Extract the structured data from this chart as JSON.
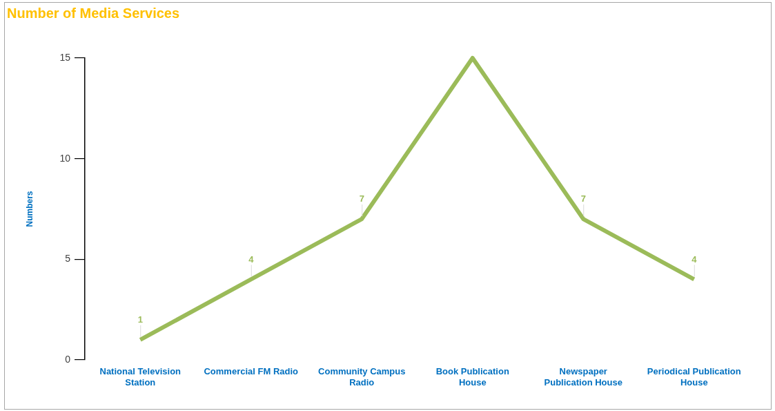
{
  "chart_data": {
    "type": "line",
    "title": "Number of Media Services",
    "ylabel": "Numbers",
    "categories": [
      "National Television Station",
      "Commercial FM Radio",
      "Community Campus Radio",
      "Book Publication House",
      "Newspaper Publication House",
      "Periodical Publication House"
    ],
    "values": [
      1,
      4,
      7,
      15,
      7,
      4
    ],
    "color": "#9bbb59",
    "value_labels": [
      "1",
      "4",
      "7",
      null,
      "7",
      "4"
    ],
    "ylim": [
      0,
      15
    ],
    "yticks": [
      0,
      5,
      10,
      15
    ],
    "grid": false,
    "legend": false,
    "marker": "none",
    "line_style": "solid"
  }
}
